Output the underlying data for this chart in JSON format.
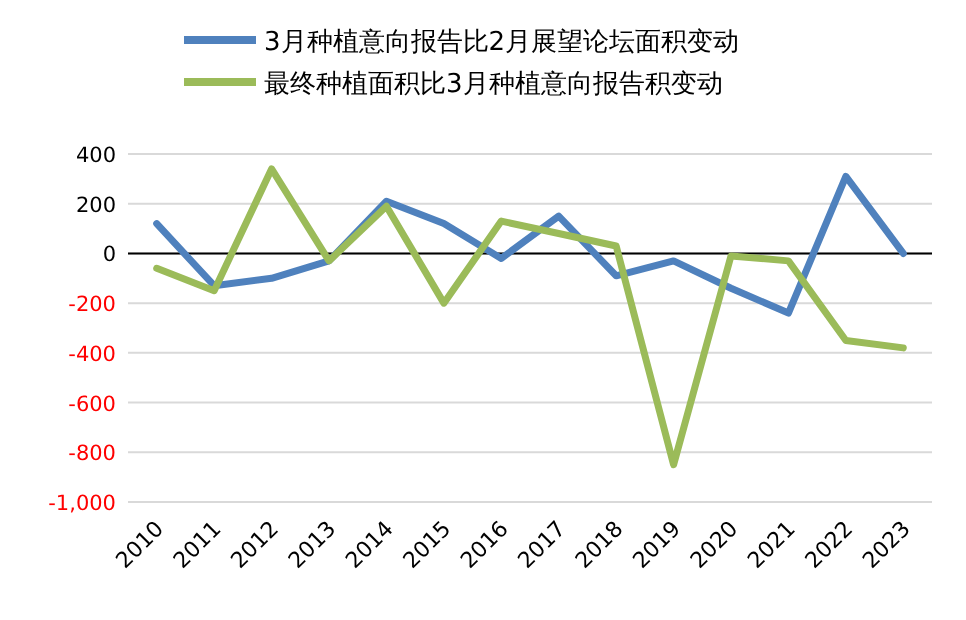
{
  "chart_data": {
    "type": "line",
    "categories": [
      "2010",
      "2011",
      "2012",
      "2013",
      "2014",
      "2015",
      "2016",
      "2017",
      "2018",
      "2019",
      "2020",
      "2021",
      "2022",
      "2023"
    ],
    "series": [
      {
        "name": "3月种植意向报告比2月展望论坛面积变动",
        "color": "#4f81bd",
        "values": [
          120,
          -130,
          -100,
          -30,
          210,
          120,
          -20,
          150,
          -90,
          -30,
          -140,
          -240,
          310,
          0
        ]
      },
      {
        "name": "最终种植面积比3月种植意向报告积变动",
        "color": "#9bbb59",
        "values": [
          -60,
          -150,
          340,
          -30,
          190,
          -200,
          130,
          80,
          30,
          -850,
          -10,
          -30,
          -350,
          -380
        ]
      }
    ],
    "ylim": [
      -1000,
      400
    ],
    "yticks": [
      {
        "value": -1000,
        "label": "-1,000"
      },
      -800,
      -600,
      -400,
      -200,
      0,
      200,
      400
    ],
    "grid": "y",
    "legend": "top",
    "marker": "none",
    "line_style": "solid"
  }
}
